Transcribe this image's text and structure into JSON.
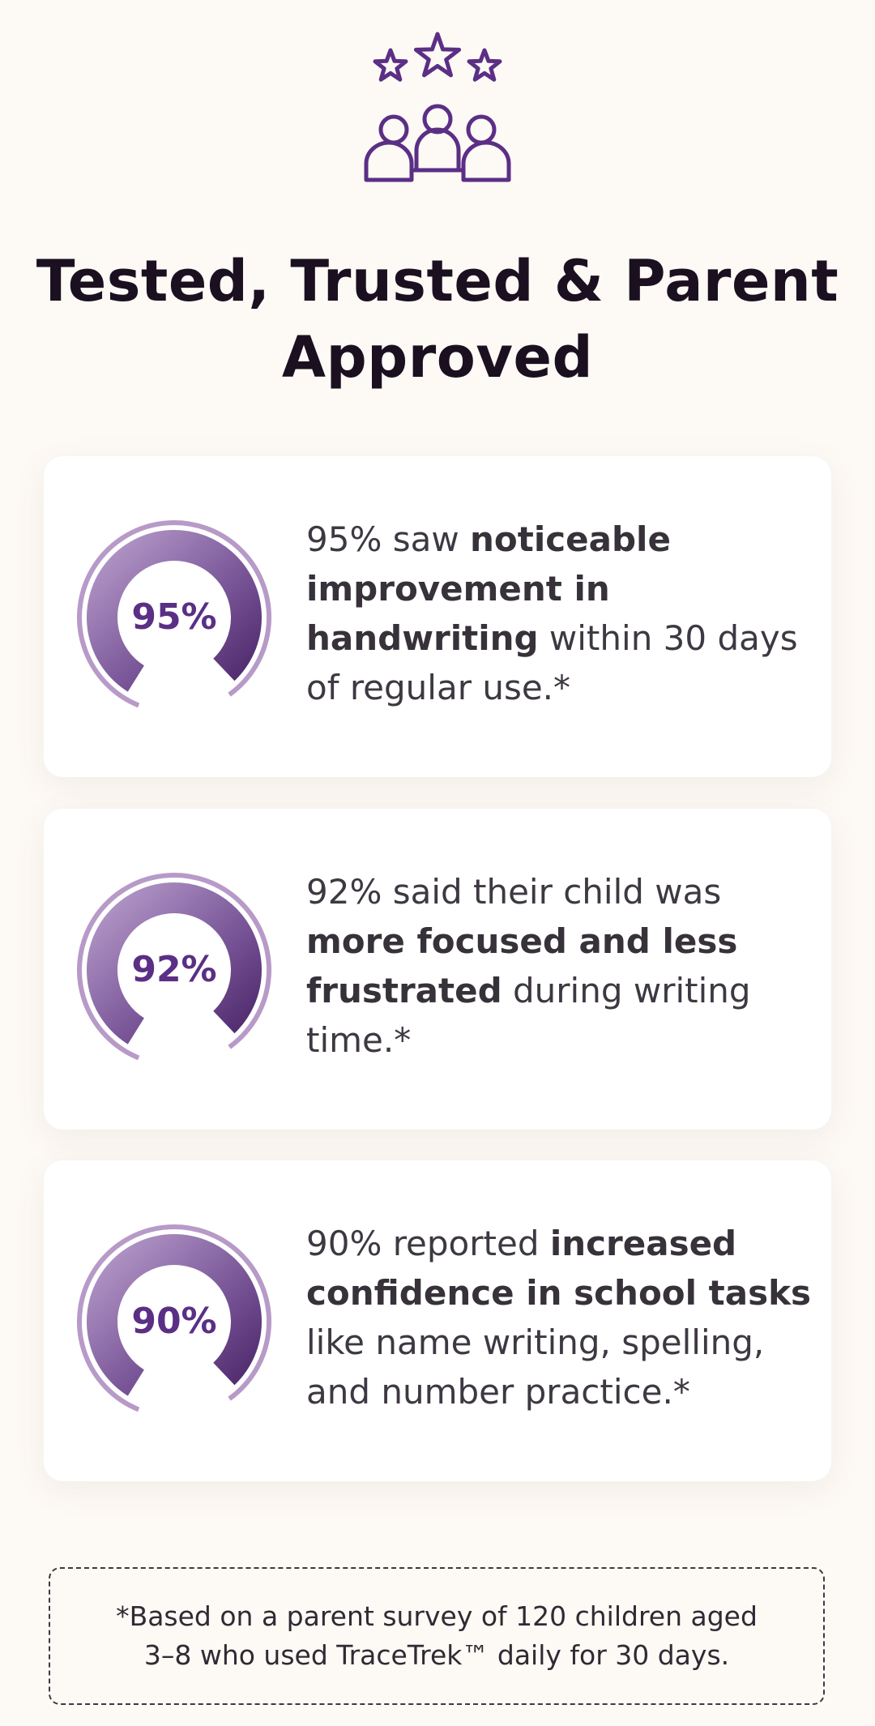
{
  "header": {
    "title": "Tested, Trusted & Parent Approved",
    "icon": "family-stars-icon"
  },
  "colors": {
    "accent": "#5b2f85",
    "ring_light": "#b79ac8",
    "background": "#fdf9f5"
  },
  "stats": [
    {
      "percent_label": "95%",
      "value": 95,
      "text_prefix": "95% saw ",
      "text_bold": "noticeable improvement in handwriting",
      "text_suffix": " within 30 days of regular use.*"
    },
    {
      "percent_label": "92%",
      "value": 92,
      "text_prefix": "92% said their child was ",
      "text_bold": "more focused and less frustrated",
      "text_suffix": " during writing time.*"
    },
    {
      "percent_label": "90%",
      "value": 90,
      "text_prefix": "90% reported ",
      "text_bold": "increased confidence in school tasks",
      "text_suffix": " like name writing, spelling, and number practice.*"
    }
  ],
  "footnote": {
    "text": "*Based on a parent survey of 120 children aged 3–8 who used TraceTrek™ daily for 30 days."
  }
}
